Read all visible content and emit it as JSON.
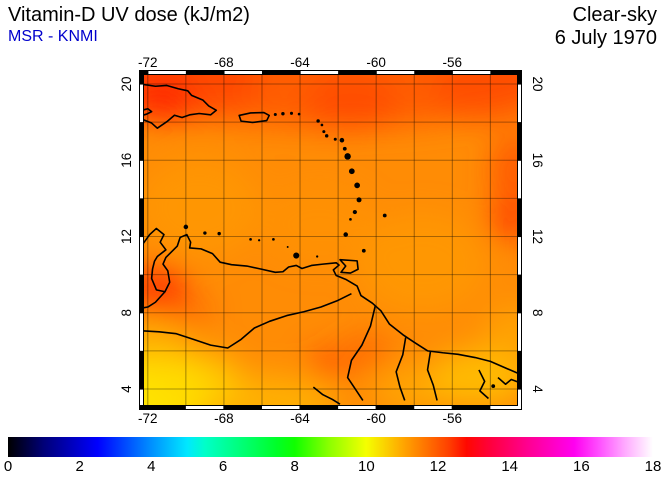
{
  "header": {
    "title": "Vitamin-D UV dose (kJ/m2)",
    "subtitle": "MSR - KNMI",
    "subtitle_color": "#0000CC",
    "right_line1": "Clear-sky",
    "right_line2": "6 July 1970"
  },
  "chart_data": {
    "type": "heatmap",
    "title": "Vitamin-D UV dose (kJ/m2)",
    "subtitle": "MSR - KNMI",
    "condition": "Clear-sky",
    "date": "6 July 1970",
    "projection": "lon-lat map, Caribbean / northern South America",
    "lon_range": [
      -72.2,
      -52.6
    ],
    "lat_range": [
      3.16,
      20.47
    ],
    "x_ticks": [
      -72,
      -68,
      -64,
      -60,
      -56
    ],
    "y_ticks": [
      4,
      8,
      12,
      16,
      20
    ],
    "grid_step_deg": 2,
    "grid": true,
    "colorbar": {
      "min": 0,
      "max": 18,
      "unit": "kJ/m2",
      "ticks": [
        0,
        2,
        4,
        6,
        8,
        10,
        12,
        14,
        16,
        18
      ],
      "stops": [
        [
          0,
          "#000000"
        ],
        [
          1,
          "#000078"
        ],
        [
          2.5,
          "#0000FF"
        ],
        [
          4,
          "#0090FF"
        ],
        [
          5,
          "#00E8FF"
        ],
        [
          5.5,
          "#00FFC8"
        ],
        [
          6.5,
          "#00FF78"
        ],
        [
          7.5,
          "#00FF28"
        ],
        [
          8,
          "#10FF00"
        ],
        [
          9,
          "#90FF00"
        ],
        [
          10,
          "#F5FF00"
        ],
        [
          11,
          "#FFA800"
        ],
        [
          11.7,
          "#FF7000"
        ],
        [
          12.3,
          "#FF4000"
        ],
        [
          12.8,
          "#FF0800"
        ],
        [
          13.5,
          "#FF0040"
        ],
        [
          14.5,
          "#FF0090"
        ],
        [
          15.8,
          "#FF00F0"
        ],
        [
          16.5,
          "#FF50FF"
        ],
        [
          17.2,
          "#FFA8FF"
        ],
        [
          18,
          "#FFFFFF"
        ]
      ]
    },
    "field_summary": [
      {
        "region": "northern Caribbean band lat 17-20.5",
        "approx_value": 12.2
      },
      {
        "region": "red patch over eastern Hispaniola",
        "approx_value": 12.8
      },
      {
        "region": "central Caribbean sea",
        "approx_value": 11.3
      },
      {
        "region": "Lake Maracaibo red patch",
        "approx_value": 12.7
      },
      {
        "region": "right edge lat 12-16",
        "approx_value": 12.3
      },
      {
        "region": "southern lowlands lat < 7",
        "approx_value": 10.5
      },
      {
        "region": "bottom-left corner (yellow)",
        "approx_value": 10.0
      }
    ],
    "base_color": "#FF8C05",
    "blobs": [
      [
        -62.0,
        21.3,
        13.0,
        3.6,
        "#FF5500",
        0.85
      ],
      [
        -70.5,
        20.3,
        4.5,
        2.2,
        "#FF3A00",
        0.55
      ],
      [
        -71.3,
        19.2,
        1.7,
        1.1,
        "#FF1C00",
        0.8
      ],
      [
        -61.3,
        19.0,
        2.4,
        1.5,
        "#FF3C00",
        0.5
      ],
      [
        -54.0,
        19.8,
        3.0,
        1.8,
        "#FF4400",
        0.55
      ],
      [
        -52.7,
        15.4,
        1.3,
        2.0,
        "#FF4400",
        0.65
      ],
      [
        -52.9,
        12.8,
        1.2,
        1.0,
        "#FF2600",
        0.7
      ],
      [
        -71.5,
        9.4,
        1.6,
        1.1,
        "#FF2000",
        0.75
      ],
      [
        -72.2,
        8.5,
        1.4,
        0.7,
        "#FF4000",
        0.5
      ],
      [
        -70.2,
        8.1,
        1.6,
        0.7,
        "#FF4800",
        0.5
      ],
      [
        -69.3,
        13.5,
        3.2,
        2.6,
        "#FFA000",
        0.5
      ],
      [
        -57.6,
        10.6,
        3.4,
        2.6,
        "#FFA000",
        0.55
      ],
      [
        -63.0,
        12.6,
        3.0,
        2.0,
        "#FF9800",
        0.4
      ],
      [
        -62.6,
        5.3,
        1.0,
        0.8,
        "#FF3000",
        0.6
      ],
      [
        -60.5,
        5.9,
        1.4,
        1.0,
        "#FF5000",
        0.5
      ],
      [
        -71.8,
        3.6,
        3.4,
        2.2,
        "#FFEE00",
        0.9
      ],
      [
        -69.6,
        4.4,
        2.6,
        1.6,
        "#FFD800",
        0.7
      ],
      [
        -72.0,
        6.3,
        2.0,
        1.3,
        "#FFD000",
        0.5
      ],
      [
        -66.0,
        3.3,
        4.0,
        1.4,
        "#FFCC00",
        0.55
      ],
      [
        -54.6,
        4.6,
        2.6,
        1.5,
        "#FFD800",
        0.6
      ],
      [
        -52.8,
        6.8,
        1.6,
        1.6,
        "#FFBB00",
        0.45
      ],
      [
        -58.0,
        4.0,
        2.2,
        1.2,
        "#FFC400",
        0.45
      ]
    ],
    "coastline_paths": [
      "M -72.3,-19.98 L -71.6,-19.88 L -71.0,-19.92 L -70.4,-19.75 L -69.9,-19.64 L -69.7,-19.4 L -69.1,-19.15 L -68.8,-18.85 L -68.4,-18.62 L -68.7,-18.38 L -69.3,-18.45 L -69.8,-18.38 L -70.2,-18.24 L -70.6,-18.36 L -71.0,-18.02 L -71.5,-17.68 L -71.8,-17.95 L -72.3,-18.15",
      "M -72.3,-18.62 L -72.0,-18.7 L -71.8,-18.55 L -72.05,-18.42 L -72.3,-18.35",
      "M -67.2,-18.35 L -66.6,-18.48 L -65.9,-18.5 L -65.62,-18.35 L -65.75,-18.08 L -66.5,-17.98 L -67.1,-18.05 Z",
      "M -72.3,-11.55 L -71.9,-12.1 L -71.55,-12.42 L -71.15,-12.1 L -71.35,-11.7 L -71.05,-11.3 L -71.5,-10.95 L -71.65,-10.7 L -71.75,-10.3 L -71.8,-9.8 L -71.55,-9.2 L -71.1,-9.1 L -70.85,-9.6 L -70.95,-10.2 L -71.2,-10.55 L -71.05,-10.9 L -70.7,-11.25 L -70.45,-11.5 L -70.3,-11.95 L -69.95,-12.1 L -69.75,-11.7 L -69.8,-11.4 L -69.2,-11.35 L -68.6,-11.1 L -68.2,-10.65 L -67.6,-10.52 L -66.8,-10.45 L -66.1,-10.3 L -65.3,-10.12 L -64.9,-10.15 L -64.6,-10.4 L -64.2,-10.48 L -63.9,-10.32 L -63.4,-10.48 L -62.8,-10.55 L -62.1,-10.62 L -61.95,-10.5 L -62.25,-10.25 L -62.1,-9.95 L -61.6,-9.75 L -61.0,-9.4 L -60.8,-8.9 L -60.2,-8.5 L -59.75,-8.1 L -59.3,-7.4 L -58.6,-6.85 L -58.0,-6.45 L -57.3,-6.0 L -56.5,-5.9 L -55.7,-5.82 L -54.8,-5.65 L -54.0,-5.45 L -53.2,-5.1 L -52.5,-4.8",
      "M -61.9,-10.78 L -61.0,-10.72 L -60.95,-10.28 L -61.35,-10.08 L -61.85,-10.12 L -61.6,-10.45 Z",
      "M -72.3,-7.05 L -71.4,-7.0 L -70.5,-6.9 L -69.6,-6.6 L -68.7,-6.3 L -67.8,-6.15 L -67.1,-6.6 L -66.4,-7.2 L -65.6,-7.55 L -64.7,-7.85 L -63.8,-8.05 L -62.9,-8.3 L -62.0,-8.65 L -61.3,-9.0",
      "M -60.05,-8.35 L -60.3,-7.3 L -60.75,-6.3 L -61.3,-5.5 L -61.5,-4.6 L -61.1,-4.0 L -60.7,-3.4",
      "M -58.45,-6.7 L -58.6,-5.8 L -58.95,-4.9 L -58.75,-4.1 L -58.5,-3.4",
      "M -57.15,-5.95 L -57.3,-5.0 L -57.0,-4.2 L -56.8,-3.4",
      "M -54.6,-5.0 L -54.3,-4.4 L -54.55,-3.9 L -54.1,-3.5",
      "M -53.6,-4.6 L -53.2,-4.25 L -52.9,-4.5 L -52.5,-4.35",
      "M -63.3,-4.1 L -62.8,-3.7 L -62.3,-3.45 L -61.9,-3.2",
      "M -71.1,-9.1 L -71.6,-8.55 L -72.0,-8.3 L -72.3,-8.25"
    ],
    "islands": [
      [
        -65.3,
        18.4,
        0.08
      ],
      [
        -64.9,
        18.44,
        0.09
      ],
      [
        -64.45,
        18.46,
        0.08
      ],
      [
        -64.05,
        18.42,
        0.07
      ],
      [
        -63.05,
        18.06,
        0.09
      ],
      [
        -62.85,
        17.85,
        0.07
      ],
      [
        -62.75,
        17.5,
        0.08
      ],
      [
        -62.6,
        17.28,
        0.09
      ],
      [
        -62.15,
        17.1,
        0.08
      ],
      [
        -61.8,
        17.05,
        0.12
      ],
      [
        -61.65,
        16.6,
        0.1
      ],
      [
        -61.5,
        16.2,
        0.17
      ],
      [
        -61.28,
        15.42,
        0.15
      ],
      [
        -61.0,
        14.68,
        0.15
      ],
      [
        -60.9,
        13.92,
        0.13
      ],
      [
        -61.12,
        13.28,
        0.11
      ],
      [
        -61.35,
        12.9,
        0.07
      ],
      [
        -61.6,
        12.1,
        0.12
      ],
      [
        -59.55,
        13.1,
        0.1
      ],
      [
        -60.65,
        11.25,
        0.1
      ],
      [
        -64.2,
        11.0,
        0.16
      ],
      [
        -70.0,
        12.5,
        0.12
      ],
      [
        -69.0,
        12.18,
        0.09
      ],
      [
        -68.25,
        12.15,
        0.09
      ],
      [
        -66.6,
        11.85,
        0.07
      ],
      [
        -66.15,
        11.8,
        0.06
      ],
      [
        -65.4,
        11.85,
        0.07
      ],
      [
        -64.65,
        11.45,
        0.05
      ],
      [
        -63.1,
        10.95,
        0.06
      ],
      [
        -53.85,
        4.15,
        0.1
      ]
    ]
  }
}
